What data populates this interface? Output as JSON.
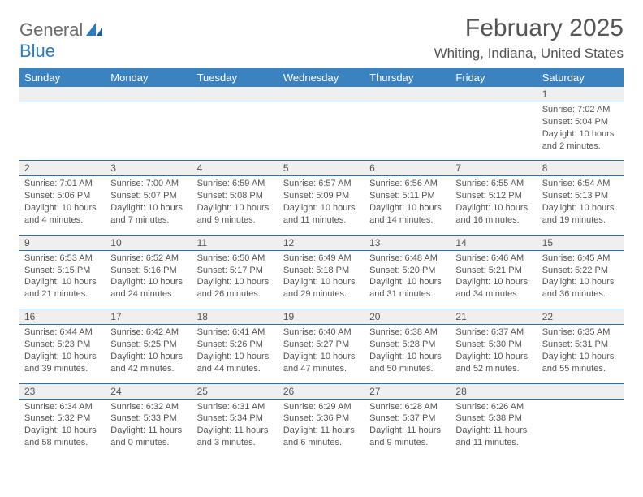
{
  "logo": {
    "text1": "General",
    "text2": "Blue"
  },
  "title": "February 2025",
  "location": "Whiting, Indiana, United States",
  "colors": {
    "header_bg": "#3b83c0",
    "header_text": "#ffffff",
    "row_divider": "#2f6fa6",
    "daynum_bg": "#efefef",
    "body_text": "#555555"
  },
  "weekdays": [
    "Sunday",
    "Monday",
    "Tuesday",
    "Wednesday",
    "Thursday",
    "Friday",
    "Saturday"
  ],
  "weeks": [
    [
      null,
      null,
      null,
      null,
      null,
      null,
      {
        "n": "1",
        "sr": "Sunrise: 7:02 AM",
        "ss": "Sunset: 5:04 PM",
        "d1": "Daylight: 10 hours",
        "d2": "and 2 minutes."
      }
    ],
    [
      {
        "n": "2",
        "sr": "Sunrise: 7:01 AM",
        "ss": "Sunset: 5:06 PM",
        "d1": "Daylight: 10 hours",
        "d2": "and 4 minutes."
      },
      {
        "n": "3",
        "sr": "Sunrise: 7:00 AM",
        "ss": "Sunset: 5:07 PM",
        "d1": "Daylight: 10 hours",
        "d2": "and 7 minutes."
      },
      {
        "n": "4",
        "sr": "Sunrise: 6:59 AM",
        "ss": "Sunset: 5:08 PM",
        "d1": "Daylight: 10 hours",
        "d2": "and 9 minutes."
      },
      {
        "n": "5",
        "sr": "Sunrise: 6:57 AM",
        "ss": "Sunset: 5:09 PM",
        "d1": "Daylight: 10 hours",
        "d2": "and 11 minutes."
      },
      {
        "n": "6",
        "sr": "Sunrise: 6:56 AM",
        "ss": "Sunset: 5:11 PM",
        "d1": "Daylight: 10 hours",
        "d2": "and 14 minutes."
      },
      {
        "n": "7",
        "sr": "Sunrise: 6:55 AM",
        "ss": "Sunset: 5:12 PM",
        "d1": "Daylight: 10 hours",
        "d2": "and 16 minutes."
      },
      {
        "n": "8",
        "sr": "Sunrise: 6:54 AM",
        "ss": "Sunset: 5:13 PM",
        "d1": "Daylight: 10 hours",
        "d2": "and 19 minutes."
      }
    ],
    [
      {
        "n": "9",
        "sr": "Sunrise: 6:53 AM",
        "ss": "Sunset: 5:15 PM",
        "d1": "Daylight: 10 hours",
        "d2": "and 21 minutes."
      },
      {
        "n": "10",
        "sr": "Sunrise: 6:52 AM",
        "ss": "Sunset: 5:16 PM",
        "d1": "Daylight: 10 hours",
        "d2": "and 24 minutes."
      },
      {
        "n": "11",
        "sr": "Sunrise: 6:50 AM",
        "ss": "Sunset: 5:17 PM",
        "d1": "Daylight: 10 hours",
        "d2": "and 26 minutes."
      },
      {
        "n": "12",
        "sr": "Sunrise: 6:49 AM",
        "ss": "Sunset: 5:18 PM",
        "d1": "Daylight: 10 hours",
        "d2": "and 29 minutes."
      },
      {
        "n": "13",
        "sr": "Sunrise: 6:48 AM",
        "ss": "Sunset: 5:20 PM",
        "d1": "Daylight: 10 hours",
        "d2": "and 31 minutes."
      },
      {
        "n": "14",
        "sr": "Sunrise: 6:46 AM",
        "ss": "Sunset: 5:21 PM",
        "d1": "Daylight: 10 hours",
        "d2": "and 34 minutes."
      },
      {
        "n": "15",
        "sr": "Sunrise: 6:45 AM",
        "ss": "Sunset: 5:22 PM",
        "d1": "Daylight: 10 hours",
        "d2": "and 36 minutes."
      }
    ],
    [
      {
        "n": "16",
        "sr": "Sunrise: 6:44 AM",
        "ss": "Sunset: 5:23 PM",
        "d1": "Daylight: 10 hours",
        "d2": "and 39 minutes."
      },
      {
        "n": "17",
        "sr": "Sunrise: 6:42 AM",
        "ss": "Sunset: 5:25 PM",
        "d1": "Daylight: 10 hours",
        "d2": "and 42 minutes."
      },
      {
        "n": "18",
        "sr": "Sunrise: 6:41 AM",
        "ss": "Sunset: 5:26 PM",
        "d1": "Daylight: 10 hours",
        "d2": "and 44 minutes."
      },
      {
        "n": "19",
        "sr": "Sunrise: 6:40 AM",
        "ss": "Sunset: 5:27 PM",
        "d1": "Daylight: 10 hours",
        "d2": "and 47 minutes."
      },
      {
        "n": "20",
        "sr": "Sunrise: 6:38 AM",
        "ss": "Sunset: 5:28 PM",
        "d1": "Daylight: 10 hours",
        "d2": "and 50 minutes."
      },
      {
        "n": "21",
        "sr": "Sunrise: 6:37 AM",
        "ss": "Sunset: 5:30 PM",
        "d1": "Daylight: 10 hours",
        "d2": "and 52 minutes."
      },
      {
        "n": "22",
        "sr": "Sunrise: 6:35 AM",
        "ss": "Sunset: 5:31 PM",
        "d1": "Daylight: 10 hours",
        "d2": "and 55 minutes."
      }
    ],
    [
      {
        "n": "23",
        "sr": "Sunrise: 6:34 AM",
        "ss": "Sunset: 5:32 PM",
        "d1": "Daylight: 10 hours",
        "d2": "and 58 minutes."
      },
      {
        "n": "24",
        "sr": "Sunrise: 6:32 AM",
        "ss": "Sunset: 5:33 PM",
        "d1": "Daylight: 11 hours",
        "d2": "and 0 minutes."
      },
      {
        "n": "25",
        "sr": "Sunrise: 6:31 AM",
        "ss": "Sunset: 5:34 PM",
        "d1": "Daylight: 11 hours",
        "d2": "and 3 minutes."
      },
      {
        "n": "26",
        "sr": "Sunrise: 6:29 AM",
        "ss": "Sunset: 5:36 PM",
        "d1": "Daylight: 11 hours",
        "d2": "and 6 minutes."
      },
      {
        "n": "27",
        "sr": "Sunrise: 6:28 AM",
        "ss": "Sunset: 5:37 PM",
        "d1": "Daylight: 11 hours",
        "d2": "and 9 minutes."
      },
      {
        "n": "28",
        "sr": "Sunrise: 6:26 AM",
        "ss": "Sunset: 5:38 PM",
        "d1": "Daylight: 11 hours",
        "d2": "and 11 minutes."
      },
      null
    ]
  ]
}
